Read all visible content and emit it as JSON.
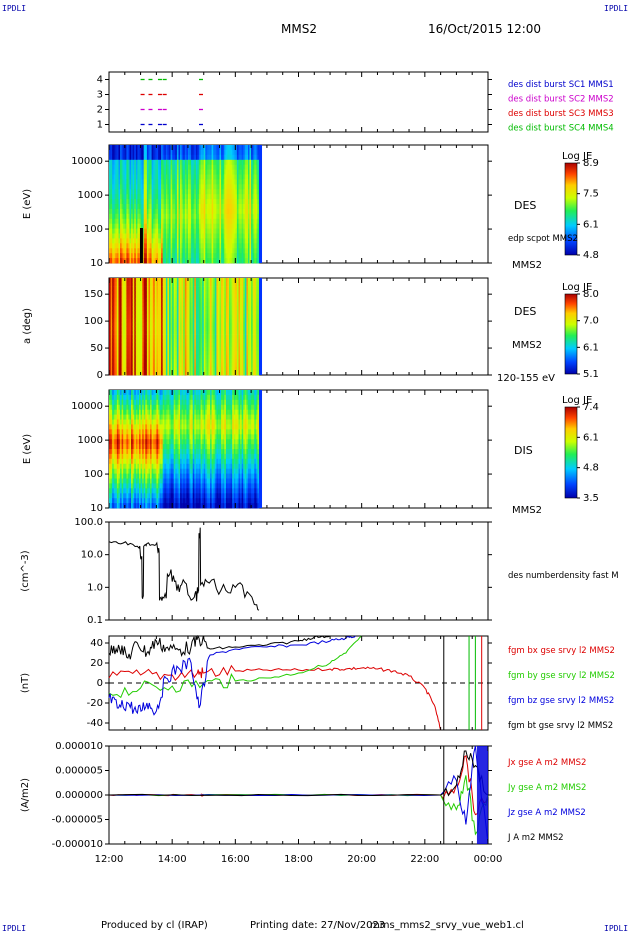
{
  "header": {
    "corner_label": "IPDLI",
    "spacecraft": "MMS2",
    "datetime": "16/Oct/2015 12:00"
  },
  "footer": {
    "producer": "Produced by cl (IRAP)",
    "printing_date": "Printing date: 27/Nov/2023",
    "filename": "mms_mms2_srvy_vue_web1.cl"
  },
  "colors": {
    "mms1": "#0000cc",
    "mms2": "#cc00cc",
    "mms3": "#dd0000",
    "mms4": "#00bb00",
    "bx": "#dd0000",
    "by": "#22cc00",
    "bz": "#0000dd",
    "bt": "#000000"
  },
  "chart_data": [
    {
      "type": "scatter",
      "panel": "burst",
      "yticks": [
        "4",
        "3",
        "2",
        "1"
      ],
      "ylim": [
        0.5,
        4.5
      ],
      "series": [
        {
          "name": "des dist burst SC1 MMS1",
          "y": 1,
          "x_hours": [
            13.0,
            13.25,
            13.55,
            13.7,
            14.85
          ]
        },
        {
          "name": "des dist burst SC2 MMS2",
          "y": 2,
          "x_hours": [
            13.0,
            13.25,
            13.55,
            13.7,
            14.85
          ]
        },
        {
          "name": "des dist burst SC3 MMS3",
          "y": 3,
          "x_hours": [
            13.0,
            13.25,
            13.55,
            13.7,
            14.85
          ]
        },
        {
          "name": "des dist burst SC4 MMS4",
          "y": 4,
          "x_hours": [
            13.0,
            13.25,
            13.55,
            13.7,
            14.85
          ]
        }
      ]
    },
    {
      "type": "heatmap",
      "panel": "des-energy",
      "ylabel": "E (eV)",
      "yticks": [
        "10000",
        "1000",
        "100",
        "10"
      ],
      "yscale": "log",
      "ylim": [
        10,
        30000
      ],
      "species": "DES",
      "overlay": "edp scpot MMS2",
      "right_label": "MMS2",
      "colorbar": {
        "title": "Log JE",
        "ticks": [
          "8.9",
          "7.5",
          "6.1",
          "4.8"
        ],
        "range": [
          4.8,
          8.9
        ]
      }
    },
    {
      "type": "heatmap",
      "panel": "des-pitch",
      "ylabel": "a (deg)",
      "yticks": [
        "150",
        "100",
        "50",
        "0"
      ],
      "ylim": [
        0,
        180
      ],
      "species": "DES",
      "right_label": "MMS2",
      "energy_range": "120-155 eV",
      "colorbar": {
        "title": "Log JE",
        "ticks": [
          "8.0",
          "7.0",
          "6.1",
          "5.1"
        ],
        "range": [
          5.1,
          8.0
        ]
      }
    },
    {
      "type": "heatmap",
      "panel": "dis-energy",
      "ylabel": "E (eV)",
      "yticks": [
        "10000",
        "1000",
        "100",
        "10"
      ],
      "yscale": "log",
      "ylim": [
        10,
        30000
      ],
      "species": "DIS",
      "right_label": "MMS2",
      "colorbar": {
        "title": "Log JE",
        "ticks": [
          "7.4",
          "6.1",
          "4.8",
          "3.5"
        ],
        "range": [
          3.5,
          7.4
        ]
      }
    },
    {
      "type": "line",
      "panel": "density",
      "ylabel": "(cm^-3)",
      "yticks": [
        "100.0",
        "10.0",
        "1.0",
        "0.1"
      ],
      "yscale": "log",
      "ylim": [
        0.1,
        100
      ],
      "series": [
        {
          "name": "des numberdensity fast M",
          "x_hours": [
            12.0,
            12.3,
            12.6,
            12.9,
            13.0,
            13.05,
            13.1,
            13.2,
            13.4,
            13.55,
            13.6,
            13.7,
            13.85,
            14.0,
            14.15,
            14.3,
            14.5,
            14.7,
            14.8,
            14.85,
            14.9,
            15.1,
            15.4,
            15.7,
            16.0,
            16.3,
            16.6,
            16.75
          ],
          "values": [
            25,
            22,
            20,
            18,
            8,
            0.5,
            18,
            22,
            20,
            12,
            0.4,
            0.5,
            2.5,
            1.5,
            0.8,
            1.2,
            0.6,
            0.5,
            1.0,
            45,
            1.2,
            1.5,
            0.9,
            0.8,
            1.0,
            0.5,
            0.3,
            0.2
          ]
        }
      ]
    },
    {
      "type": "line",
      "panel": "b-field",
      "ylabel": "(nT)",
      "yticks": [
        "40",
        "20",
        "0",
        "-20",
        "-40"
      ],
      "ylim": [
        -47,
        47
      ],
      "series": [
        {
          "name": "fgm bx gse srvy l2 MMS2",
          "x_hours": [
            12.0,
            13.0,
            14.0,
            14.8,
            15.0,
            16.0,
            17.0,
            18.0,
            19.0,
            19.5,
            20.0,
            20.5,
            21.0,
            21.5,
            22.0,
            22.3,
            22.5
          ],
          "values": [
            5,
            8,
            8,
            10,
            10,
            12,
            13,
            13,
            14,
            14,
            15,
            14,
            12,
            7,
            -5,
            -22,
            -47
          ]
        },
        {
          "name": "fgm by gse srvy l2 MMS2",
          "x_hours": [
            12.0,
            13.0,
            14.0,
            15.0,
            16.0,
            17.0,
            18.0,
            19.0,
            19.5,
            20.0
          ],
          "values": [
            -10,
            -5,
            -3,
            0,
            2,
            5,
            10,
            20,
            30,
            47
          ]
        },
        {
          "name": "fgm bz gse srvy l2 MMS2",
          "x_hours": [
            12.0,
            12.3,
            12.6,
            12.9,
            13.2,
            13.5,
            13.8,
            14.2,
            14.6,
            14.85,
            15.2,
            16.0,
            17.0,
            18.0,
            19.0,
            19.5,
            19.8
          ],
          "values": [
            -15,
            -25,
            -20,
            -30,
            -20,
            -28,
            5,
            15,
            20,
            -25,
            28,
            34,
            36,
            38,
            42,
            45,
            47
          ]
        },
        {
          "name": "fgm bt gse srvy l2 MMS2",
          "x_hours": [
            12.0,
            12.3,
            12.6,
            12.9,
            13.2,
            13.5,
            13.8,
            14.2,
            14.6,
            14.85,
            15.2,
            16.0,
            17.0,
            18.0,
            18.5,
            19.0
          ],
          "values": [
            30,
            38,
            25,
            40,
            30,
            42,
            35,
            33,
            36,
            45,
            34,
            36,
            38,
            42,
            46,
            47
          ]
        }
      ]
    },
    {
      "type": "line",
      "panel": "current",
      "ylabel": "(A/m2)",
      "yticks": [
        "0.000010",
        "0.000005",
        "0.000000",
        "-0.000005",
        "-0.000010"
      ],
      "ylim": [
        -1e-05,
        1e-05
      ],
      "xticks": [
        "12:00",
        "14:00",
        "16:00",
        "18:00",
        "20:00",
        "22:00",
        "00:00"
      ],
      "series": [
        {
          "name": "Jx gse A m2 MMS2",
          "x_hours": [
            12.0,
            14.9,
            15.0,
            22.5,
            23.0,
            23.3,
            23.6,
            24.0
          ],
          "values": [
            0,
            0,
            0,
            0,
            2e-06,
            8e-06,
            -4e-06,
            0
          ]
        },
        {
          "name": "Jy gse A m2 MMS2",
          "x_hours": [
            12.0,
            22.5,
            23.0,
            23.3,
            23.6,
            24.0
          ],
          "values": [
            0,
            0,
            -3e-06,
            4e-06,
            -8e-06,
            0
          ]
        },
        {
          "name": "Jz gse A m2 MMS2",
          "x_hours": [
            12.0,
            22.5,
            23.0,
            23.3,
            23.6,
            24.0
          ],
          "values": [
            0,
            0,
            3e-06,
            -6e-06,
            1e-05,
            -1e-05
          ]
        },
        {
          "name": "J A m2 MMS2",
          "x_hours": [
            12.0,
            22.5,
            23.0,
            23.3,
            23.6,
            24.0
          ],
          "values": [
            0,
            0,
            2e-06,
            9e-06,
            6e-06,
            0
          ]
        }
      ]
    }
  ]
}
